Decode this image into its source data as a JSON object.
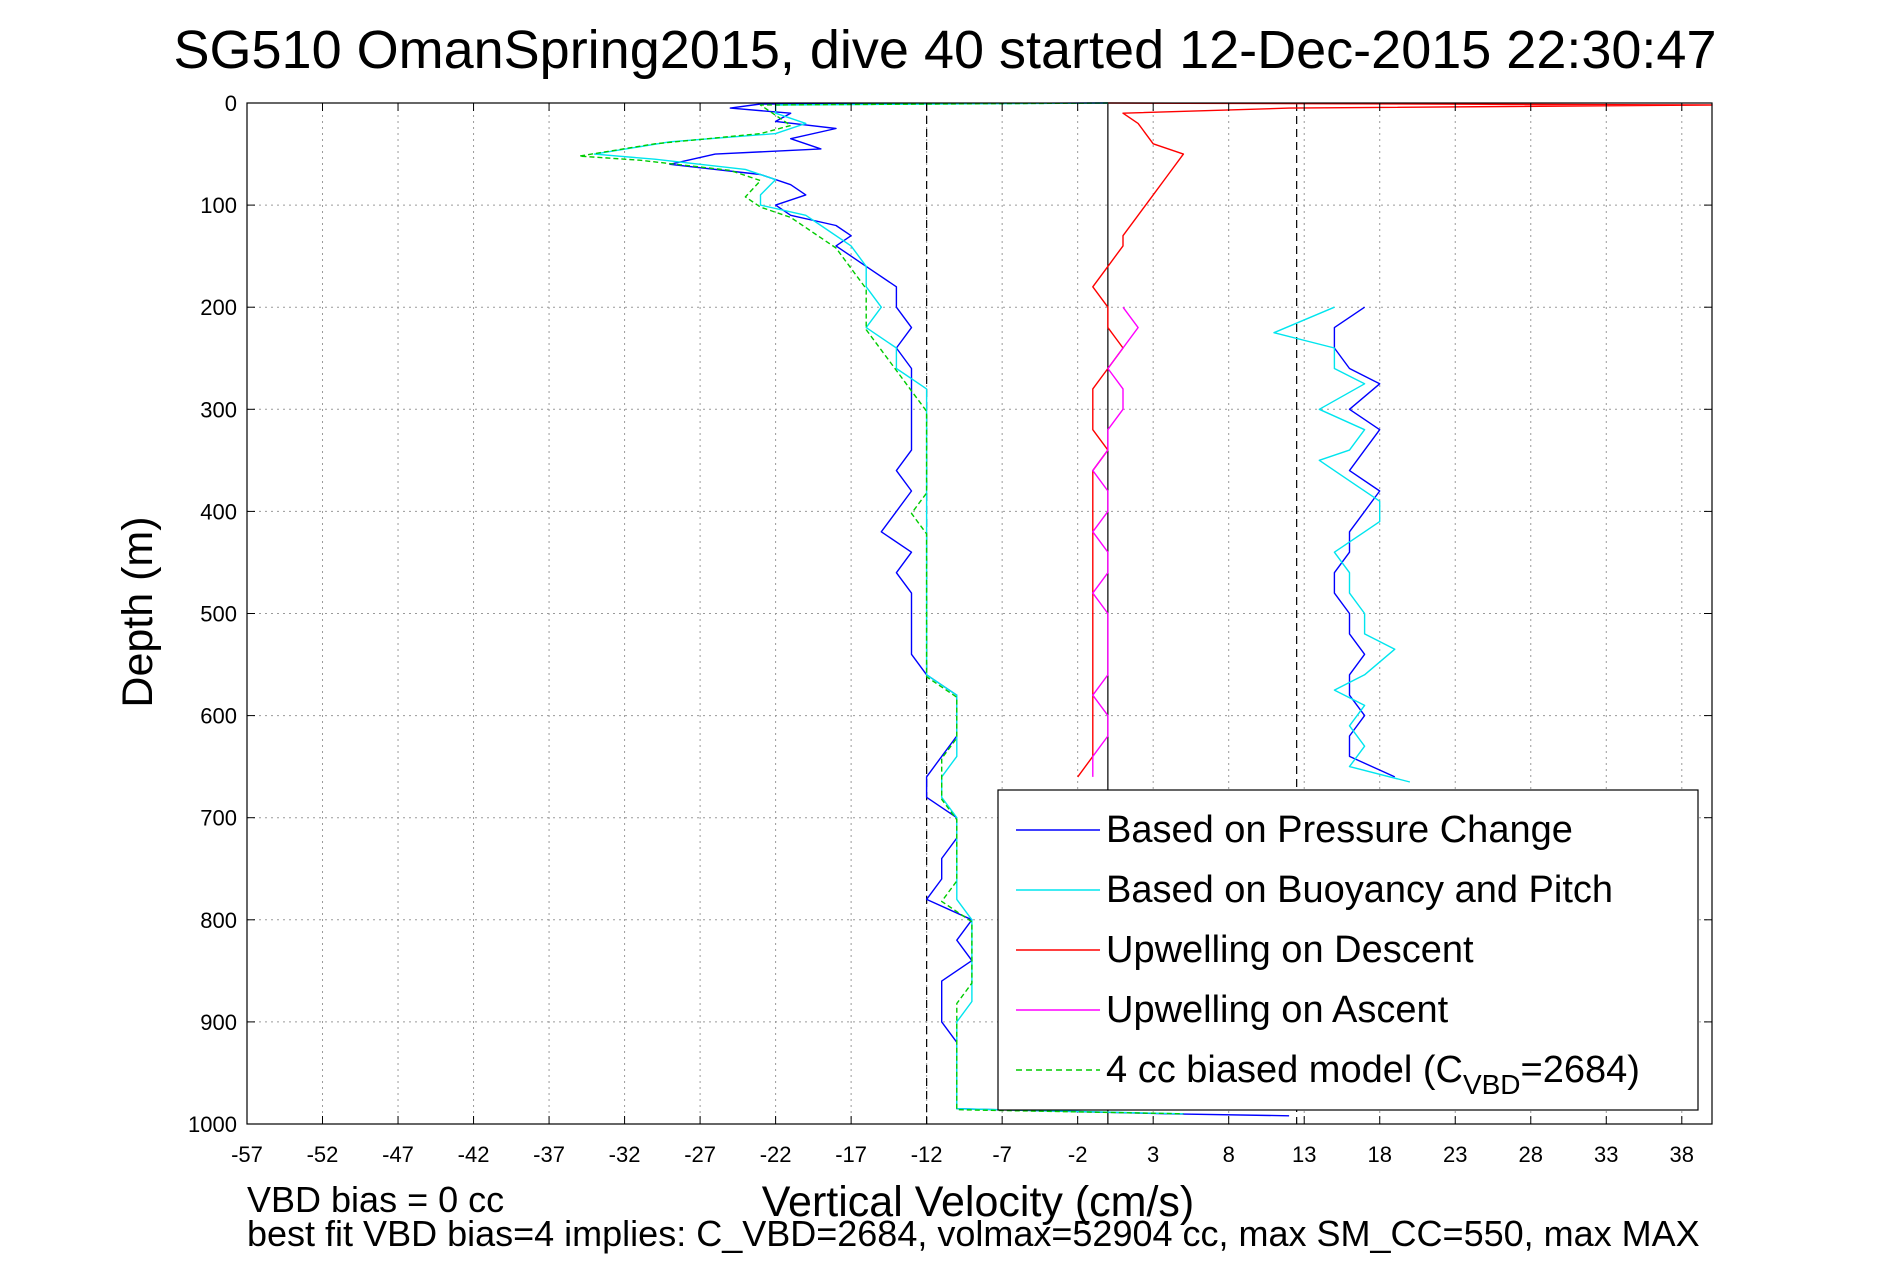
{
  "chart_data": {
    "type": "line",
    "title": "SG510 OmanSpring2015, dive 40 started 12-Dec-2015 22:30:47",
    "xlabel": "Vertical Velocity (cm/s)",
    "ylabel": "Depth (m)",
    "xlim": [
      -57,
      40
    ],
    "ylim": [
      1000,
      0
    ],
    "y_axis_reversed": true,
    "grid": true,
    "x_ticks": [
      -57,
      -52,
      -47,
      -42,
      -37,
      -32,
      -27,
      -22,
      -17,
      -12,
      -7,
      -2,
      3,
      8,
      13,
      18,
      23,
      28,
      33,
      38
    ],
    "x_tick_labels": [
      "-57",
      "-52",
      "-47",
      "-42",
      "-37",
      "-32",
      "-27",
      "-22",
      "-17",
      "-12",
      "-7",
      "-2",
      "3",
      "8",
      "13",
      "18",
      "23",
      "28",
      "33",
      "38"
    ],
    "y_ticks": [
      0,
      100,
      200,
      300,
      400,
      500,
      600,
      700,
      800,
      900,
      1000
    ],
    "y_tick_labels": [
      "0",
      "100",
      "200",
      "300",
      "400",
      "500",
      "600",
      "700",
      "800",
      "900",
      "1000"
    ],
    "reference_lines": [
      {
        "x": -12,
        "style": "dashed",
        "color": "#000000"
      },
      {
        "x": 0,
        "style": "solid",
        "color": "#000000"
      },
      {
        "x": 12.5,
        "style": "dashed",
        "color": "#000000"
      }
    ],
    "legend": {
      "placement": "lower-right",
      "entries": [
        {
          "label": "Based on Pressure Change",
          "color": "#0000ff",
          "dash": false
        },
        {
          "label": "Based on Buoyancy and Pitch",
          "color": "#00e5ee",
          "dash": false
        },
        {
          "label": "Upwelling on Descent",
          "color": "#ff0000",
          "dash": false
        },
        {
          "label": "Upwelling on Ascent",
          "color": "#ff00ff",
          "dash": false
        },
        {
          "label_prefix": "4 cc biased model (C",
          "label_sub": "VBD",
          "label_suffix": "=2684)",
          "color": "#00cc00",
          "dash": true
        }
      ]
    },
    "series": [
      {
        "name": "Based on Pressure Change",
        "color": "#0000ff",
        "points": [
          [
            0,
            0
          ],
          [
            -23,
            1
          ],
          [
            -25,
            5
          ],
          [
            -21,
            10
          ],
          [
            -22,
            18
          ],
          [
            -18,
            25
          ],
          [
            -21,
            35
          ],
          [
            -19,
            45
          ],
          [
            -26,
            50
          ],
          [
            -29,
            60
          ],
          [
            -23,
            70
          ],
          [
            -21,
            80
          ],
          [
            -20,
            90
          ],
          [
            -22,
            100
          ],
          [
            -21,
            110
          ],
          [
            -18,
            120
          ],
          [
            -17,
            130
          ],
          [
            -18,
            140
          ],
          [
            -16,
            160
          ],
          [
            -14,
            180
          ],
          [
            -14,
            200
          ],
          [
            -13,
            220
          ],
          [
            -14,
            240
          ],
          [
            -13,
            260
          ],
          [
            -13,
            280
          ],
          [
            -13,
            300
          ],
          [
            -13,
            320
          ],
          [
            -13,
            340
          ],
          [
            -14,
            360
          ],
          [
            -13,
            380
          ],
          [
            -14,
            400
          ],
          [
            -15,
            420
          ],
          [
            -13,
            440
          ],
          [
            -14,
            460
          ],
          [
            -13,
            480
          ],
          [
            -13,
            500
          ],
          [
            -13,
            520
          ],
          [
            -13,
            540
          ],
          [
            -12,
            560
          ],
          [
            -10,
            580
          ],
          [
            -10,
            600
          ],
          [
            -10,
            620
          ],
          [
            -11,
            640
          ],
          [
            -12,
            660
          ],
          [
            -12,
            680
          ],
          [
            -10,
            700
          ],
          [
            -10,
            720
          ],
          [
            -11,
            740
          ],
          [
            -11,
            760
          ],
          [
            -12,
            780
          ],
          [
            -9,
            800
          ],
          [
            -10,
            820
          ],
          [
            -9,
            840
          ],
          [
            -11,
            860
          ],
          [
            -11,
            880
          ],
          [
            -11,
            900
          ],
          [
            -10,
            920
          ],
          [
            -10,
            940
          ],
          [
            -10,
            960
          ],
          [
            -10,
            985
          ],
          [
            4,
            990
          ],
          [
            12,
            992
          ]
        ]
      },
      {
        "name": "Based on Buoyancy and Pitch",
        "color": "#00e5ee",
        "points": [
          [
            0,
            0
          ],
          [
            -22,
            2
          ],
          [
            -22,
            10
          ],
          [
            -20,
            20
          ],
          [
            -22,
            30
          ],
          [
            -29,
            38
          ],
          [
            -34,
            50
          ],
          [
            -30,
            55
          ],
          [
            -24,
            65
          ],
          [
            -22,
            75
          ],
          [
            -23,
            90
          ],
          [
            -23,
            100
          ],
          [
            -20,
            110
          ],
          [
            -19,
            120
          ],
          [
            -17,
            140
          ],
          [
            -16,
            160
          ],
          [
            -16,
            180
          ],
          [
            -15,
            200
          ],
          [
            -16,
            220
          ],
          [
            -14,
            240
          ],
          [
            -14,
            260
          ],
          [
            -12,
            280
          ],
          [
            -12,
            300
          ],
          [
            -12,
            320
          ],
          [
            -12,
            340
          ],
          [
            -12,
            360
          ],
          [
            -12,
            380
          ],
          [
            -12,
            400
          ],
          [
            -12,
            420
          ],
          [
            -12,
            440
          ],
          [
            -12,
            460
          ],
          [
            -12,
            480
          ],
          [
            -12,
            500
          ],
          [
            -12,
            520
          ],
          [
            -12,
            540
          ],
          [
            -12,
            560
          ],
          [
            -10,
            580
          ],
          [
            -10,
            600
          ],
          [
            -10,
            620
          ],
          [
            -10,
            640
          ],
          [
            -11,
            660
          ],
          [
            -11,
            680
          ],
          [
            -10,
            700
          ],
          [
            -10,
            720
          ],
          [
            -10,
            740
          ],
          [
            -10,
            760
          ],
          [
            -10,
            780
          ],
          [
            -9,
            800
          ],
          [
            -9,
            820
          ],
          [
            -9,
            840
          ],
          [
            -9,
            860
          ],
          [
            -9,
            880
          ],
          [
            -10,
            900
          ],
          [
            -10,
            920
          ],
          [
            -10,
            940
          ],
          [
            -10,
            960
          ],
          [
            -10,
            985
          ],
          [
            5,
            990
          ]
        ]
      },
      {
        "name": "Upwelling on Descent",
        "color": "#ff0000",
        "points": [
          [
            0,
            0
          ],
          [
            40,
            2
          ],
          [
            12,
            5
          ],
          [
            1,
            10
          ],
          [
            2,
            20
          ],
          [
            3,
            40
          ],
          [
            5,
            50
          ],
          [
            4,
            70
          ],
          [
            3,
            90
          ],
          [
            2,
            110
          ],
          [
            1,
            130
          ],
          [
            1,
            140
          ],
          [
            0,
            160
          ],
          [
            -1,
            180
          ],
          [
            0,
            200
          ],
          [
            0,
            220
          ],
          [
            1,
            240
          ],
          [
            0,
            260
          ],
          [
            -1,
            280
          ],
          [
            -1,
            300
          ],
          [
            -1,
            320
          ],
          [
            0,
            340
          ],
          [
            -1,
            360
          ],
          [
            -1,
            380
          ],
          [
            -1,
            400
          ],
          [
            -1,
            420
          ],
          [
            -1,
            440
          ],
          [
            -1,
            460
          ],
          [
            -1,
            480
          ],
          [
            -1,
            500
          ],
          [
            -1,
            520
          ],
          [
            -1,
            540
          ],
          [
            -1,
            560
          ],
          [
            -1,
            580
          ],
          [
            -1,
            600
          ],
          [
            -1,
            620
          ],
          [
            -1,
            640
          ],
          [
            -2,
            660
          ]
        ]
      },
      {
        "name": "Upwelling on Ascent",
        "color": "#ff00ff",
        "points": [
          [
            1,
            200
          ],
          [
            2,
            220
          ],
          [
            1,
            240
          ],
          [
            0,
            260
          ],
          [
            1,
            280
          ],
          [
            1,
            300
          ],
          [
            0,
            320
          ],
          [
            0,
            340
          ],
          [
            -1,
            360
          ],
          [
            0,
            380
          ],
          [
            0,
            400
          ],
          [
            -1,
            420
          ],
          [
            0,
            440
          ],
          [
            0,
            460
          ],
          [
            -1,
            480
          ],
          [
            0,
            500
          ],
          [
            0,
            520
          ],
          [
            0,
            540
          ],
          [
            0,
            560
          ],
          [
            -1,
            580
          ],
          [
            0,
            600
          ],
          [
            0,
            620
          ],
          [
            -1,
            640
          ],
          [
            -1,
            660
          ]
        ]
      },
      {
        "name": "Based on Pressure Change (ascent)",
        "color": "#0000ff",
        "points": [
          [
            17,
            200
          ],
          [
            15,
            220
          ],
          [
            15,
            240
          ],
          [
            16,
            260
          ],
          [
            18,
            275
          ],
          [
            16,
            300
          ],
          [
            18,
            320
          ],
          [
            17,
            340
          ],
          [
            16,
            360
          ],
          [
            18,
            380
          ],
          [
            17,
            400
          ],
          [
            16,
            420
          ],
          [
            16,
            440
          ],
          [
            15,
            460
          ],
          [
            15,
            480
          ],
          [
            16,
            500
          ],
          [
            16,
            520
          ],
          [
            17,
            540
          ],
          [
            16,
            560
          ],
          [
            16,
            580
          ],
          [
            17,
            600
          ],
          [
            16,
            620
          ],
          [
            16,
            640
          ],
          [
            19,
            660
          ]
        ]
      },
      {
        "name": "Based on Buoyancy and Pitch (ascent)",
        "color": "#00e5ee",
        "points": [
          [
            15,
            200
          ],
          [
            11,
            225
          ],
          [
            15,
            240
          ],
          [
            15,
            260
          ],
          [
            17,
            275
          ],
          [
            14,
            300
          ],
          [
            17,
            320
          ],
          [
            16,
            340
          ],
          [
            14,
            350
          ],
          [
            16,
            370
          ],
          [
            18,
            390
          ],
          [
            18,
            410
          ],
          [
            17,
            420
          ],
          [
            15,
            440
          ],
          [
            16,
            460
          ],
          [
            16,
            480
          ],
          [
            17,
            500
          ],
          [
            17,
            520
          ],
          [
            19,
            535
          ],
          [
            17,
            560
          ],
          [
            15,
            575
          ],
          [
            17,
            590
          ],
          [
            16,
            610
          ],
          [
            17,
            630
          ],
          [
            16,
            650
          ],
          [
            20,
            665
          ]
        ]
      },
      {
        "name": "4 cc biased model",
        "color": "#00cc00",
        "dash": true,
        "points": [
          [
            0,
            0
          ],
          [
            -23,
            2
          ],
          [
            -22,
            12
          ],
          [
            -21,
            22
          ],
          [
            -23,
            30
          ],
          [
            -30,
            40
          ],
          [
            -35,
            52
          ],
          [
            -31,
            56
          ],
          [
            -25,
            66
          ],
          [
            -23,
            76
          ],
          [
            -24,
            92
          ],
          [
            -23,
            102
          ],
          [
            -21,
            112
          ],
          [
            -20,
            122
          ],
          [
            -18,
            142
          ],
          [
            -17,
            162
          ],
          [
            -16,
            182
          ],
          [
            -16,
            202
          ],
          [
            -16,
            222
          ],
          [
            -15,
            242
          ],
          [
            -14,
            262
          ],
          [
            -13,
            282
          ],
          [
            -12,
            302
          ],
          [
            -12,
            322
          ],
          [
            -12,
            342
          ],
          [
            -12,
            362
          ],
          [
            -12,
            382
          ],
          [
            -13,
            402
          ],
          [
            -12,
            422
          ],
          [
            -12,
            442
          ],
          [
            -12,
            462
          ],
          [
            -12,
            482
          ],
          [
            -12,
            502
          ],
          [
            -12,
            522
          ],
          [
            -12,
            542
          ],
          [
            -12,
            562
          ],
          [
            -10,
            582
          ],
          [
            -10,
            602
          ],
          [
            -10,
            622
          ],
          [
            -11,
            642
          ],
          [
            -11,
            662
          ],
          [
            -11,
            682
          ],
          [
            -10,
            702
          ],
          [
            -10,
            722
          ],
          [
            -10,
            742
          ],
          [
            -10,
            762
          ],
          [
            -11,
            782
          ],
          [
            -9,
            802
          ],
          [
            -9,
            822
          ],
          [
            -9,
            842
          ],
          [
            -9,
            862
          ],
          [
            -10,
            882
          ],
          [
            -10,
            902
          ],
          [
            -10,
            922
          ],
          [
            -10,
            942
          ],
          [
            -10,
            962
          ],
          [
            -10,
            986
          ],
          [
            5,
            990
          ]
        ]
      }
    ],
    "annotations": [
      "VBD bias = 0 cc",
      "best fit VBD bias=4 implies: C_VBD=2684, volmax=52904 cc, max SM_CC=550, max MAX"
    ]
  }
}
